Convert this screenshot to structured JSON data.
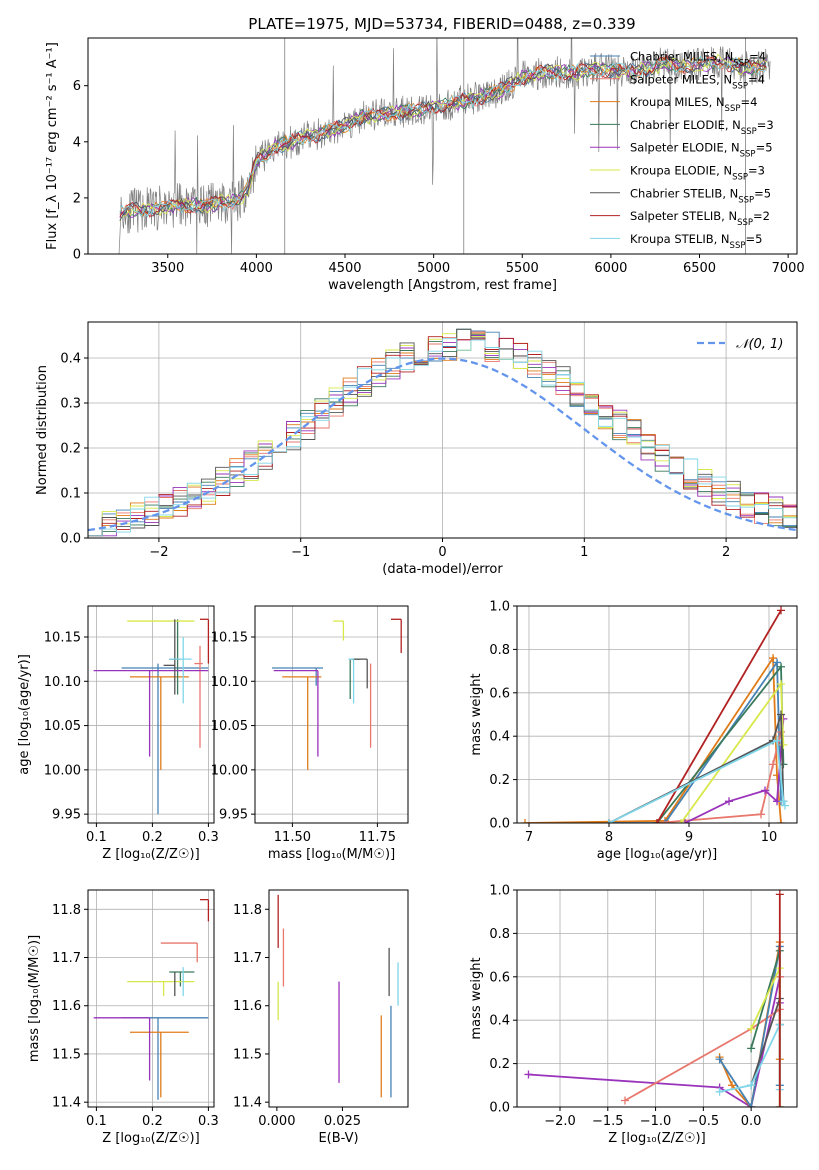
{
  "figure_title": "PLATE=1975, MJD=53734, FIBERID=0488, z=0.339",
  "colors": {
    "Chabrier MILES": "#4682b4",
    "Salpeter MILES": "#e8776e",
    "Kroupa MILES": "#e07b1a",
    "Chabrier ELODIE": "#3a7a5c",
    "Salpeter ELODIE": "#9a33bb",
    "Kroupa ELODIE": "#d8e84a",
    "Chabrier STELIB": "#555555",
    "Salpeter STELIB": "#b22222",
    "Kroupa STELIB": "#7fd6e8",
    "normal": "#6495ed",
    "data": "#808080"
  },
  "chart_data": [
    {
      "type": "line",
      "id": "spectrum",
      "xlabel": "wavelength [Angstrom, rest frame]",
      "ylabel": "Flux [f_λ 10⁻¹⁷ erg cm⁻² s⁻¹ A⁻¹]",
      "xlim": [
        3050,
        7050
      ],
      "ylim": [
        0,
        7.7
      ],
      "xticks": [
        3500,
        4000,
        4500,
        5000,
        5500,
        6000,
        6500,
        7000
      ],
      "yticks": [
        0,
        2,
        4,
        6
      ],
      "legend_position": "top-right",
      "legend": [
        {
          "name": "Chabrier MILES",
          "label": "Chabrier MILES, N",
          "sub": "SSP",
          "tail": "=4"
        },
        {
          "name": "Salpeter MILES",
          "label": "Salpeter MILES, N",
          "sub": "SSP",
          "tail": "=4"
        },
        {
          "name": "Kroupa MILES",
          "label": "Kroupa MILES, N",
          "sub": "SSP",
          "tail": "=4"
        },
        {
          "name": "Chabrier ELODIE",
          "label": "Chabrier ELODIE, N",
          "sub": "SSP",
          "tail": "=3"
        },
        {
          "name": "Salpeter ELODIE",
          "label": "Salpeter ELODIE, N",
          "sub": "SSP",
          "tail": "=5"
        },
        {
          "name": "Kroupa ELODIE",
          "label": "Kroupa ELODIE, N",
          "sub": "SSP",
          "tail": "=3"
        },
        {
          "name": "Chabrier STELIB",
          "label": "Chabrier STELIB, N",
          "sub": "SSP",
          "tail": "=5"
        },
        {
          "name": "Salpeter STELIB",
          "label": "Salpeter STELIB, N",
          "sub": "SSP",
          "tail": "=2"
        },
        {
          "name": "Kroupa STELIB",
          "label": "Kroupa STELIB, N",
          "sub": "SSP",
          "tail": "=5"
        }
      ],
      "continuum": {
        "x": [
          3230,
          3300,
          3400,
          3500,
          3600,
          3700,
          3800,
          3900,
          3950,
          4000,
          4100,
          4200,
          4300,
          4400,
          4500,
          4600,
          4700,
          4800,
          4900,
          5000,
          5100,
          5200,
          5300,
          5400,
          5500,
          5600,
          5700,
          5800,
          5900,
          6000,
          6100,
          6200,
          6300,
          6400,
          6500,
          6600,
          6700,
          6800,
          6900
        ],
        "y": [
          1.45,
          1.55,
          1.6,
          1.7,
          1.75,
          1.7,
          1.85,
          1.9,
          2.3,
          3.3,
          3.8,
          4.0,
          4.2,
          4.35,
          4.6,
          4.9,
          4.95,
          5.05,
          5.1,
          5.25,
          5.35,
          5.5,
          5.65,
          5.9,
          6.3,
          6.45,
          6.5,
          6.45,
          6.6,
          6.55,
          6.5,
          6.6,
          6.8,
          6.7,
          6.75,
          6.85,
          6.75,
          6.6,
          6.8
        ]
      }
    },
    {
      "type": "line",
      "id": "residuals",
      "xlabel": "(data-model)/error",
      "ylabel": "Normed distribution",
      "xlim": [
        -2.5,
        2.5
      ],
      "ylim": [
        0,
        0.48
      ],
      "xticks": [
        -2,
        -1,
        0,
        1,
        2
      ],
      "yticks": [
        0.0,
        0.1,
        0.2,
        0.3,
        0.4
      ],
      "grid": true,
      "legend_position": "top-right",
      "legend": [
        {
          "name": "normal",
          "label": "𝒩(0, 1)"
        }
      ],
      "bins": 50
    },
    {
      "type": "scatter",
      "id": "age-vs-Z",
      "xlabel": "Z [log₁₀(Z/Z☉)]",
      "ylabel": "age  [log₁₀(age/yr)]",
      "xlim": [
        0.085,
        0.31
      ],
      "ylim": [
        9.94,
        10.185
      ],
      "xticks": [
        0.1,
        0.2,
        0.3
      ],
      "yticks": [
        9.95,
        10.0,
        10.05,
        10.1,
        10.15
      ],
      "grid": true,
      "points": [
        {
          "name": "Chabrier MILES",
          "x": 0.21,
          "y": 10.115,
          "xerr": [
            0.065,
            0.09
          ],
          "yerr": [
            0.165,
            0.005
          ]
        },
        {
          "name": "Salpeter MILES",
          "x": 0.285,
          "y": 10.12,
          "xerr": [
            0.01,
            0.005
          ],
          "yerr": [
            0.095,
            0.02
          ]
        },
        {
          "name": "Kroupa MILES",
          "x": 0.215,
          "y": 10.105,
          "xerr": [
            0.055,
            0.05
          ],
          "yerr": [
            0.105,
            0.0
          ]
        },
        {
          "name": "Chabrier ELODIE",
          "x": 0.245,
          "y": 10.125,
          "xerr": [
            0.015,
            0.005
          ],
          "yerr": [
            0.04,
            0.045
          ]
        },
        {
          "name": "Salpeter ELODIE",
          "x": 0.195,
          "y": 10.112,
          "xerr": [
            0.1,
            0.105
          ],
          "yerr": [
            0.097,
            0.0
          ]
        },
        {
          "name": "Kroupa ELODIE",
          "x": 0.22,
          "y": 10.168,
          "xerr": [
            0.065,
            0.055
          ],
          "yerr": [
            0.0,
            0.0
          ]
        },
        {
          "name": "Chabrier STELIB",
          "x": 0.24,
          "y": 10.118,
          "xerr": [
            0.02,
            0.0
          ],
          "yerr": [
            0.033,
            0.052
          ]
        },
        {
          "name": "Salpeter STELIB",
          "x": 0.3,
          "y": 10.17,
          "xerr": [
            0.015,
            0.0
          ],
          "yerr": [
            0.05,
            0.0
          ]
        },
        {
          "name": "Kroupa STELIB",
          "x": 0.255,
          "y": 10.125,
          "xerr": [
            0.025,
            0.015
          ],
          "yerr": [
            0.05,
            0.025
          ]
        }
      ]
    },
    {
      "type": "scatter",
      "id": "age-vs-mass",
      "xlabel": "mass [log₁₀(M/M☉)]",
      "ylabel": "",
      "xlim": [
        11.39,
        11.84
      ],
      "ylim": [
        9.94,
        10.185
      ],
      "xticks": [
        11.5,
        11.75
      ],
      "yticks": [
        9.95,
        10.0,
        10.05,
        10.1,
        10.15
      ],
      "grid": true,
      "points": [
        {
          "name": "Chabrier MILES",
          "x": 11.57,
          "y": 10.115,
          "xerr": [
            0.13,
            0.02
          ],
          "yerr": [
            0.02,
            0.0
          ]
        },
        {
          "name": "Salpeter MILES",
          "x": 11.73,
          "y": 10.12,
          "xerr": [
            0.0,
            0.0
          ],
          "yerr": [
            0.095,
            0.0
          ]
        },
        {
          "name": "Kroupa MILES",
          "x": 11.545,
          "y": 10.105,
          "xerr": [
            0.075,
            0.04
          ],
          "yerr": [
            0.105,
            0.0
          ]
        },
        {
          "name": "Chabrier ELODIE",
          "x": 11.67,
          "y": 10.125,
          "xerr": [
            0.0,
            0.03
          ],
          "yerr": [
            0.045,
            0.0
          ]
        },
        {
          "name": "Salpeter ELODIE",
          "x": 11.575,
          "y": 10.112,
          "xerr": [
            0.13,
            0.0
          ],
          "yerr": [
            0.097,
            0.0
          ]
        },
        {
          "name": "Kroupa ELODIE",
          "x": 11.65,
          "y": 10.168,
          "xerr": [
            0.03,
            0.0
          ],
          "yerr": [
            0.022,
            0.0
          ]
        },
        {
          "name": "Chabrier STELIB",
          "x": 11.72,
          "y": 10.125,
          "xerr": [
            0.045,
            0.0
          ],
          "yerr": [
            0.033,
            0.0
          ]
        },
        {
          "name": "Salpeter STELIB",
          "x": 11.82,
          "y": 10.17,
          "xerr": [
            0.03,
            0.0
          ],
          "yerr": [
            0.038,
            0.0
          ]
        },
        {
          "name": "Kroupa STELIB",
          "x": 11.68,
          "y": 10.125,
          "xerr": [
            0.015,
            0.0
          ],
          "yerr": [
            0.05,
            0.0
          ]
        }
      ]
    },
    {
      "type": "line",
      "id": "mass-weight-vs-age",
      "xlabel": "age  [log₁₀(age/yr)]",
      "ylabel": "mass weight",
      "xlim": [
        6.85,
        10.35
      ],
      "ylim": [
        0,
        1.0
      ],
      "xticks": [
        7,
        8,
        9,
        10
      ],
      "yticks": [
        0.0,
        0.2,
        0.4,
        0.6,
        0.8,
        1.0
      ],
      "grid": true,
      "series": [
        {
          "name": "Kroupa MILES",
          "x": [
            6.95,
            8.7,
            10.05,
            10.1,
            10.15
          ],
          "y": [
            0.0,
            0.01,
            0.76,
            0.22,
            0.0
          ]
        },
        {
          "name": "Chabrier MILES",
          "x": [
            8.0,
            8.7,
            10.1,
            10.15
          ],
          "y": [
            0.0,
            0.0,
            0.74,
            0.1
          ]
        },
        {
          "name": "Salpeter MILES",
          "x": [
            8.6,
            9.9,
            10.05,
            10.15
          ],
          "y": [
            0.0,
            0.04,
            0.27,
            0.42
          ]
        },
        {
          "name": "Chabrier ELODIE",
          "x": [
            8.6,
            10.15,
            10.18
          ],
          "y": [
            0.0,
            0.72,
            0.27
          ]
        },
        {
          "name": "Salpeter ELODIE",
          "x": [
            8.95,
            9.5,
            9.95,
            10.1,
            10.18
          ],
          "y": [
            0.0,
            0.1,
            0.15,
            0.1,
            0.48
          ]
        },
        {
          "name": "Kroupa ELODIE",
          "x": [
            8.9,
            10.15,
            10.18
          ],
          "y": [
            0.0,
            0.64,
            0.36
          ]
        },
        {
          "name": "Chabrier STELIB",
          "x": [
            8.0,
            10.05,
            10.15,
            10.18
          ],
          "y": [
            0.0,
            0.38,
            0.5,
            0.1
          ]
        },
        {
          "name": "Salpeter STELIB",
          "x": [
            8.6,
            10.15
          ],
          "y": [
            0.0,
            0.98
          ]
        },
        {
          "name": "Kroupa STELIB",
          "x": [
            8.0,
            10.1,
            10.18,
            10.2
          ],
          "y": [
            0.0,
            0.38,
            0.1,
            0.08
          ]
        }
      ]
    },
    {
      "type": "scatter",
      "id": "mass-vs-Z",
      "xlabel": "Z [log₁₀(Z/Z☉)]",
      "ylabel": "mass [log₁₀(M/M☉)]",
      "xlim": [
        0.085,
        0.31
      ],
      "ylim": [
        11.39,
        11.84
      ],
      "xticks": [
        0.1,
        0.2,
        0.3
      ],
      "yticks": [
        11.4,
        11.5,
        11.6,
        11.7,
        11.8
      ],
      "grid": true,
      "points": [
        {
          "name": "Chabrier MILES",
          "x": 0.21,
          "y": 11.575,
          "xerr": [
            0.065,
            0.09
          ],
          "yerr": [
            0.17,
            0.0
          ]
        },
        {
          "name": "Salpeter MILES",
          "x": 0.28,
          "y": 11.73,
          "xerr": [
            0.065,
            0.0
          ],
          "yerr": [
            0.04,
            0.0
          ]
        },
        {
          "name": "Kroupa MILES",
          "x": 0.215,
          "y": 11.545,
          "xerr": [
            0.055,
            0.05
          ],
          "yerr": [
            0.135,
            0.0
          ]
        },
        {
          "name": "Chabrier ELODIE",
          "x": 0.25,
          "y": 11.67,
          "xerr": [
            0.02,
            0.025
          ],
          "yerr": [
            0.03,
            0.0
          ]
        },
        {
          "name": "Salpeter ELODIE",
          "x": 0.195,
          "y": 11.575,
          "xerr": [
            0.1,
            0.0
          ],
          "yerr": [
            0.13,
            0.0
          ]
        },
        {
          "name": "Kroupa ELODIE",
          "x": 0.22,
          "y": 11.65,
          "xerr": [
            0.065,
            0.055
          ],
          "yerr": [
            0.03,
            0.0
          ]
        },
        {
          "name": "Chabrier STELIB",
          "x": 0.24,
          "y": 11.67,
          "xerr": [
            0.0,
            0.0
          ],
          "yerr": [
            0.05,
            0.0
          ]
        },
        {
          "name": "Salpeter STELIB",
          "x": 0.3,
          "y": 11.82,
          "xerr": [
            0.015,
            0.0
          ],
          "yerr": [
            0.045,
            0.0
          ]
        },
        {
          "name": "Kroupa STELIB",
          "x": 0.255,
          "y": 11.68,
          "xerr": [
            0.0,
            0.0
          ],
          "yerr": [
            0.06,
            0.0
          ]
        }
      ]
    },
    {
      "type": "scatter",
      "id": "mass-vs-EBV",
      "xlabel": "E(B-V)",
      "ylabel": "",
      "xlim": [
        -0.003,
        0.05
      ],
      "ylim": [
        11.39,
        11.84
      ],
      "xticks": [
        0.0,
        0.025
      ],
      "yticks": [
        11.4,
        11.5,
        11.6,
        11.7,
        11.8
      ],
      "grid": false,
      "segments": [
        {
          "name": "Salpeter STELIB",
          "x": 0.0005,
          "y0": 11.72,
          "y1": 11.83
        },
        {
          "name": "Kroupa ELODIE",
          "x": 0.0005,
          "y0": 11.57,
          "y1": 11.65
        },
        {
          "name": "Salpeter MILES",
          "x": 0.0025,
          "y0": 11.64,
          "y1": 11.76
        },
        {
          "name": "Salpeter ELODIE",
          "x": 0.0237,
          "y0": 11.44,
          "y1": 11.65
        },
        {
          "name": "Kroupa MILES",
          "x": 0.0398,
          "y0": 11.41,
          "y1": 11.58
        },
        {
          "name": "Chabrier STELIB",
          "x": 0.0428,
          "y0": 11.62,
          "y1": 11.72
        },
        {
          "name": "Chabrier MILES",
          "x": 0.0435,
          "y0": 11.41,
          "y1": 11.6
        },
        {
          "name": "Kroupa STELIB",
          "x": 0.0462,
          "y0": 11.6,
          "y1": 11.69
        }
      ]
    },
    {
      "type": "line",
      "id": "mass-weight-vs-Z",
      "xlabel": "Z [log₁₀(Z/Z☉)]",
      "ylabel": "mass weight",
      "xlim": [
        -2.45,
        0.48
      ],
      "ylim": [
        0,
        1.0
      ],
      "xticks": [
        -2.0,
        -1.5,
        -1.0,
        -0.5,
        0.0
      ],
      "yticks": [
        0.0,
        0.2,
        0.4,
        0.6,
        0.8,
        1.0
      ],
      "grid": true,
      "series": [
        {
          "name": "Salpeter ELODIE",
          "x": [
            -2.33,
            -0.33,
            0.0,
            0.3,
            0.3
          ],
          "y": [
            0.15,
            0.09,
            0.0,
            0.6,
            0.48
          ]
        },
        {
          "name": "Salpeter MILES",
          "x": [
            -1.32,
            0.0,
            0.3,
            0.3
          ],
          "y": [
            0.03,
            0.36,
            0.45,
            0.6
          ]
        },
        {
          "name": "Kroupa MILES",
          "x": [
            -0.33,
            -0.2,
            0.0,
            0.3,
            0.3
          ],
          "y": [
            0.23,
            0.1,
            0.0,
            0.76,
            0.22
          ]
        },
        {
          "name": "Chabrier MILES",
          "x": [
            -0.33,
            0.0,
            0.3,
            0.3
          ],
          "y": [
            0.22,
            0.0,
            0.74,
            0.1
          ]
        },
        {
          "name": "Chabrier ELODIE",
          "x": [
            0.0,
            0.3,
            0.3
          ],
          "y": [
            0.27,
            0.72,
            0.0
          ]
        },
        {
          "name": "Kroupa ELODIE",
          "x": [
            0.0,
            0.3,
            0.3
          ],
          "y": [
            0.36,
            0.64,
            0.0
          ]
        },
        {
          "name": "Chabrier STELIB",
          "x": [
            0.0,
            0.3,
            0.3
          ],
          "y": [
            0.1,
            0.5,
            0.38
          ]
        },
        {
          "name": "Kroupa STELIB",
          "x": [
            -0.33,
            0.0,
            0.3,
            0.3
          ],
          "y": [
            0.07,
            0.1,
            0.38,
            0.08
          ]
        },
        {
          "name": "Salpeter STELIB",
          "x": [
            0.3,
            0.3
          ],
          "y": [
            0.0,
            0.98
          ]
        }
      ]
    }
  ]
}
